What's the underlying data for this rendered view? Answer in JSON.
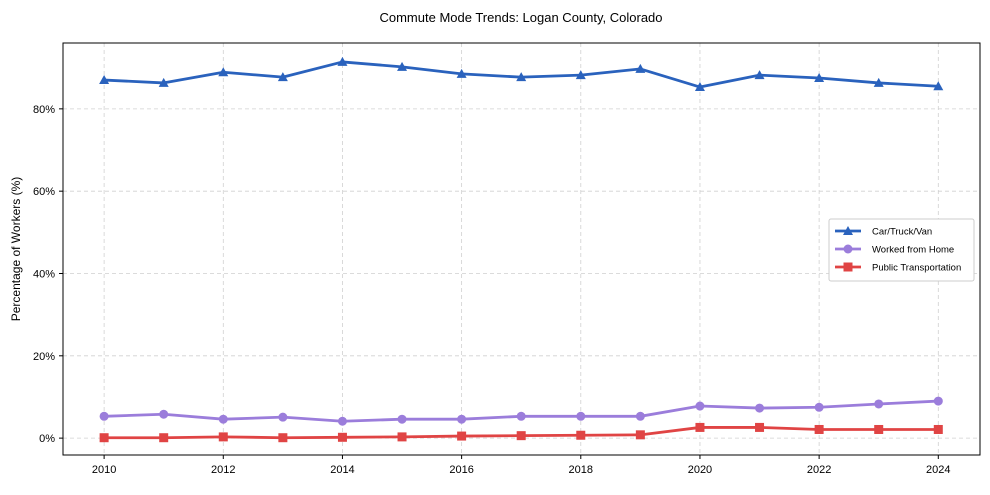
{
  "chart_data": {
    "type": "line",
    "title": "Commute Mode Trends: Logan County, Colorado",
    "xlabel": "",
    "ylabel": "Percentage of Workers (%)",
    "x": [
      2010,
      2011,
      2012,
      2013,
      2014,
      2015,
      2016,
      2017,
      2018,
      2019,
      2020,
      2021,
      2022,
      2023,
      2024
    ],
    "xticks": [
      2010,
      2012,
      2014,
      2016,
      2018,
      2020,
      2022,
      2024
    ],
    "xtick_labels": [
      "2010",
      "2012",
      "2014",
      "2016",
      "2018",
      "2020",
      "2022",
      "2024"
    ],
    "yticks": [
      0,
      20,
      40,
      60,
      80
    ],
    "ytick_labels": [
      "0%",
      "20%",
      "40%",
      "60%",
      "80%"
    ],
    "xlim": [
      2009.31,
      2024.7
    ],
    "ylim": [
      -4.1,
      96.0
    ],
    "grid": true,
    "legend_position": "center-right",
    "series": [
      {
        "name": "Car/Truck/Van",
        "color": "#2a62bd",
        "marker": "triangle",
        "values": [
          87.0,
          86.3,
          88.9,
          87.7,
          91.4,
          90.2,
          88.5,
          87.7,
          88.2,
          89.7,
          85.3,
          88.2,
          87.5,
          86.3,
          85.5
        ]
      },
      {
        "name": "Worked from Home",
        "color": "#9b7ddb",
        "marker": "circle",
        "values": [
          5.3,
          5.8,
          4.6,
          5.1,
          4.1,
          4.6,
          4.6,
          5.3,
          5.3,
          5.3,
          7.8,
          7.3,
          7.5,
          8.3,
          9.0
        ]
      },
      {
        "name": "Public Transportation",
        "color": "#e04444",
        "marker": "square",
        "values": [
          0.1,
          0.1,
          0.3,
          0.1,
          0.2,
          0.3,
          0.5,
          0.6,
          0.7,
          0.8,
          2.6,
          2.6,
          2.1,
          2.1,
          2.1
        ]
      }
    ]
  }
}
